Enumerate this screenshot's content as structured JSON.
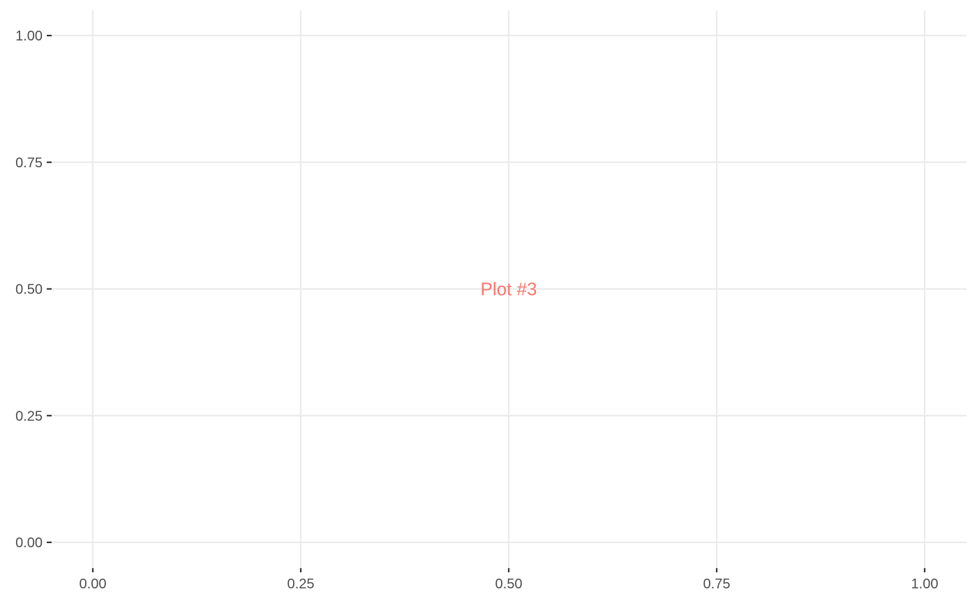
{
  "chart_data": {
    "type": "scatter",
    "title": "",
    "xlabel": "",
    "ylabel": "",
    "xlim": [
      0,
      1
    ],
    "ylim": [
      0,
      1
    ],
    "x_ticks": [
      0,
      0.25,
      0.5,
      0.75,
      1
    ],
    "y_ticks": [
      0,
      0.25,
      0.5,
      0.75,
      1
    ],
    "x_tick_labels": [
      "0.00",
      "0.25",
      "0.50",
      "0.75",
      "1.00"
    ],
    "y_tick_labels": [
      "0.00",
      "0.25",
      "0.50",
      "0.75",
      "1.00"
    ],
    "grid": true,
    "series": [],
    "annotations": [
      {
        "text": "Plot #3",
        "x": 0.5,
        "y": 0.5,
        "color": "#f8766d"
      }
    ]
  },
  "colors": {
    "grid": "#ebebeb",
    "tick_text": "#4d4d4d",
    "tick_mark": "#333333",
    "annotation": "#f8766d"
  }
}
